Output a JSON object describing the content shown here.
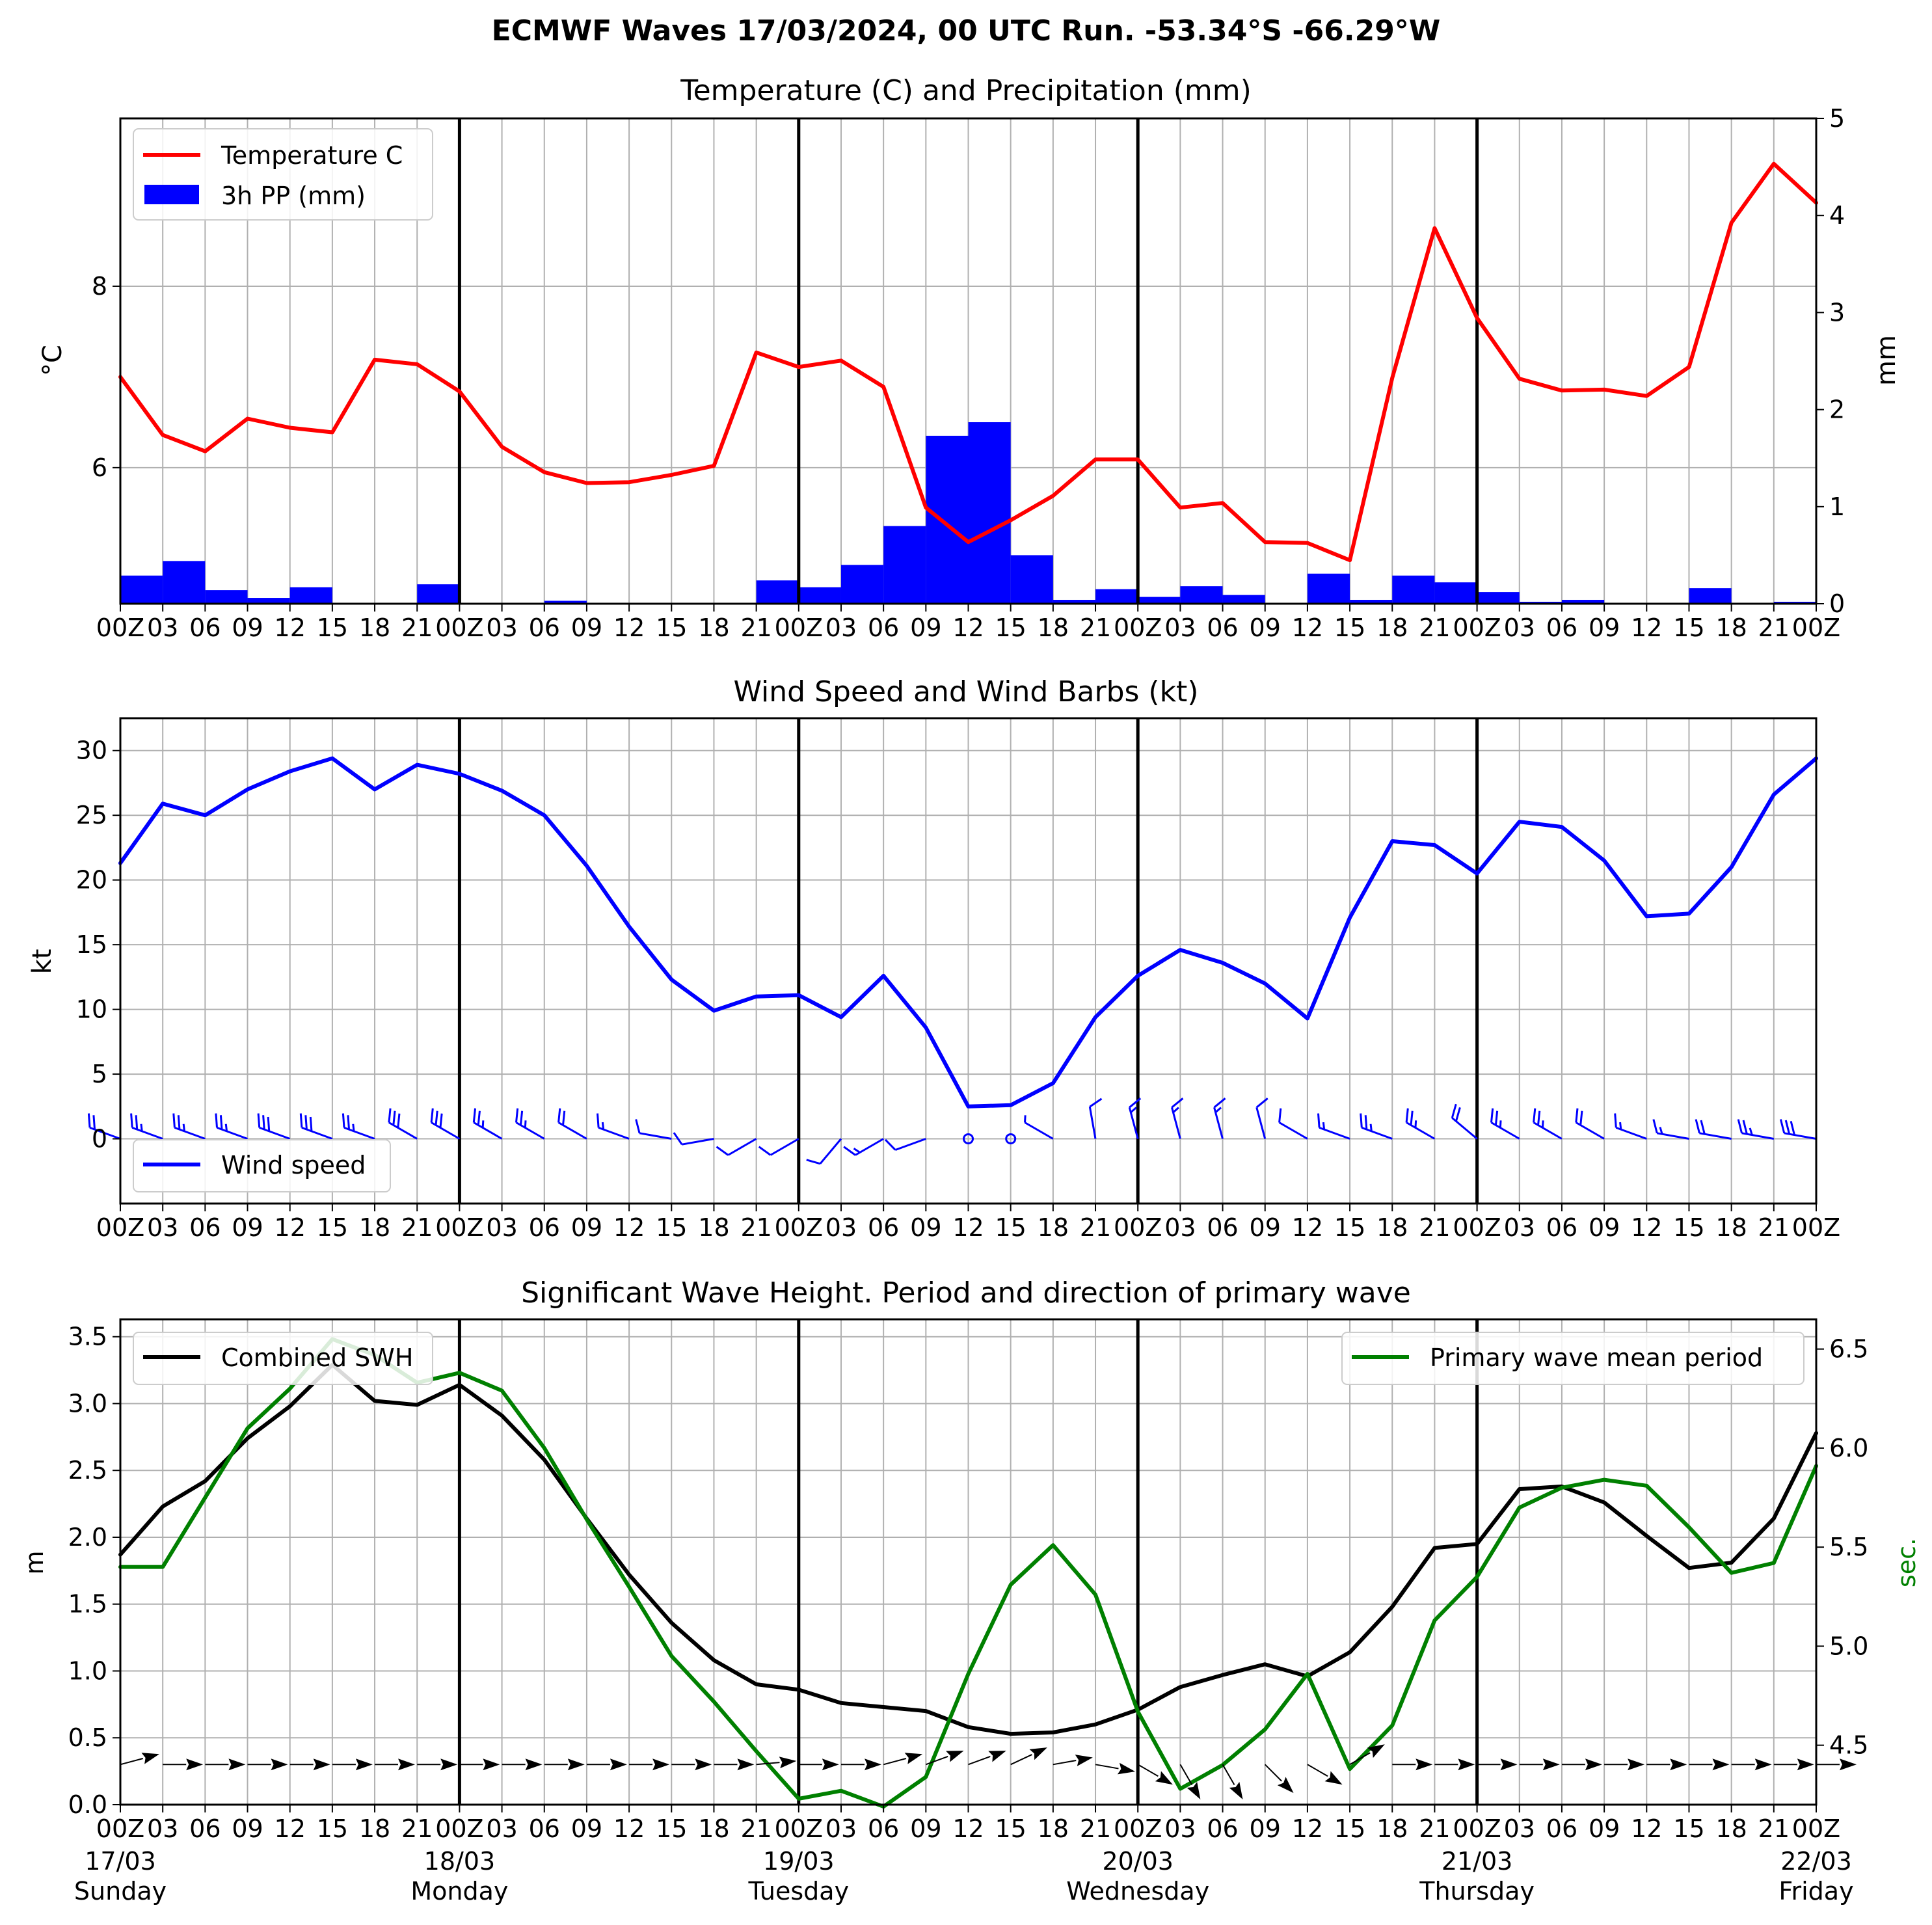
{
  "title": "ECMWF Waves 17/03/2024, 00 UTC Run. -53.34°S -66.29°W",
  "colors": {
    "temperature": "#ff0000",
    "precipitation": "#0000ff",
    "wind": "#0000ff",
    "swh": "#000000",
    "period": "#008000",
    "grid": "#b0b0b0",
    "day_line": "#000000"
  },
  "time_axis": {
    "hour_labels": [
      "00Z",
      "03",
      "06",
      "09",
      "12",
      "15",
      "18",
      "21",
      "00Z",
      "03",
      "06",
      "09",
      "12",
      "15",
      "18",
      "21",
      "00Z",
      "03",
      "06",
      "09",
      "12",
      "15",
      "18",
      "21",
      "00Z",
      "03",
      "06",
      "09",
      "12",
      "15",
      "18",
      "21",
      "00Z",
      "03",
      "06",
      "09",
      "12",
      "15",
      "18",
      "21",
      "00Z"
    ],
    "day_dates": [
      "17/03",
      "18/03",
      "19/03",
      "20/03",
      "21/03",
      "22/03"
    ],
    "day_names": [
      "Sunday",
      "Monday",
      "Tuesday",
      "Wednesday",
      "Thursday",
      "Friday"
    ]
  },
  "chart_data": [
    {
      "type": "line",
      "title": "Temperature (C) and Precipitation (mm)",
      "ylabel": "$^\\circ$C",
      "ylabel_display": "°C",
      "y2label": "mm",
      "ylim": [
        4.5,
        9.85
      ],
      "y2lim": [
        0,
        5
      ],
      "yticks": [
        6,
        8
      ],
      "y2ticks": [
        0,
        1,
        2,
        3,
        4,
        5
      ],
      "legend_position": "top-left",
      "grid": true,
      "series": [
        {
          "name": "Temperature C",
          "type": "line",
          "axis": "left",
          "values": [
            7.0,
            6.36,
            6.18,
            6.54,
            6.44,
            6.39,
            7.19,
            7.14,
            6.84,
            6.23,
            5.95,
            5.83,
            5.84,
            5.92,
            6.02,
            7.27,
            7.11,
            7.18,
            6.89,
            5.56,
            5.18,
            5.42,
            5.69,
            6.09,
            6.09,
            5.56,
            5.61,
            5.18,
            5.17,
            4.98,
            6.99,
            8.64,
            7.65,
            6.98,
            6.85,
            6.86,
            6.79,
            7.11,
            8.7,
            9.35,
            8.92
          ]
        },
        {
          "name": "3h PP (mm)",
          "type": "bar",
          "axis": "right",
          "values": [
            0.29,
            0.44,
            0.14,
            0.06,
            0.17,
            0,
            0,
            0.2,
            0,
            0,
            0.03,
            0,
            0,
            0,
            0,
            0.24,
            0.17,
            0.4,
            0.8,
            1.73,
            1.87,
            0.5,
            0.04,
            0.15,
            0.07,
            0.18,
            0.09,
            0,
            0.31,
            0.04,
            0.29,
            0.22,
            0.12,
            0.02,
            0.04,
            0,
            0,
            0.16,
            0,
            0.02
          ]
        }
      ]
    },
    {
      "type": "line",
      "title": "Wind Speed and Wind Barbs (kt)",
      "ylabel": "kt",
      "ylim": [
        -5,
        32.5
      ],
      "yticks": [
        0,
        5,
        10,
        15,
        20,
        25,
        30
      ],
      "legend_position": "bottom-left",
      "grid": true,
      "series": [
        {
          "name": "Wind speed",
          "values": [
            21.3,
            25.9,
            25.0,
            27.0,
            28.4,
            29.4,
            27.0,
            28.9,
            28.2,
            26.9,
            25.0,
            21.1,
            16.4,
            12.3,
            9.9,
            11.0,
            11.1,
            9.4,
            12.6,
            8.6,
            2.5,
            2.6,
            4.3,
            9.4,
            12.6,
            14.6,
            13.6,
            12.0,
            9.3,
            17.1,
            23.0,
            22.7,
            20.5,
            24.5,
            24.1,
            21.5,
            17.2,
            17.4,
            21.0,
            26.6,
            29.4
          ]
        },
        {
          "name": "Wind barb direction (deg)",
          "type": "barbs",
          "values": [
            290,
            290,
            290,
            290,
            290,
            290,
            290,
            300,
            300,
            300,
            300,
            300,
            290,
            280,
            260,
            240,
            240,
            220,
            240,
            250,
            30,
            330,
            300,
            350,
            345,
            345,
            345,
            345,
            300,
            290,
            290,
            300,
            310,
            300,
            300,
            300,
            290,
            280,
            280,
            280,
            280
          ]
        }
      ]
    },
    {
      "type": "line",
      "title": "Significant Wave Height. Period and direction of primary wave",
      "ylabel": "m",
      "y2label": "sec.",
      "ylim": [
        0,
        3.63
      ],
      "y2lim": [
        4.2,
        6.65
      ],
      "yticks": [
        0.0,
        0.5,
        1.0,
        1.5,
        2.0,
        2.5,
        3.0,
        3.5
      ],
      "y2ticks": [
        4.5,
        5.0,
        5.5,
        6.0,
        6.5
      ],
      "grid": true,
      "series": [
        {
          "name": "Combined SWH",
          "axis": "left",
          "legend_position": "top-left",
          "values": [
            1.87,
            2.23,
            2.42,
            2.74,
            2.98,
            3.29,
            3.02,
            2.99,
            3.14,
            2.91,
            2.58,
            2.14,
            1.72,
            1.36,
            1.08,
            0.9,
            0.86,
            0.76,
            0.73,
            0.7,
            0.58,
            0.53,
            0.54,
            0.6,
            0.71,
            0.88,
            0.97,
            1.05,
            0.96,
            1.14,
            1.48,
            1.92,
            1.95,
            2.36,
            2.38,
            2.26,
            2.01,
            1.77,
            1.81,
            2.14,
            2.78
          ]
        },
        {
          "name": "Primary wave mean period",
          "axis": "right",
          "legend_position": "top-right",
          "values": [
            5.4,
            5.4,
            5.75,
            6.1,
            6.3,
            6.55,
            6.47,
            6.33,
            6.38,
            6.29,
            6.0,
            5.64,
            5.3,
            4.95,
            4.72,
            4.47,
            4.23,
            4.27,
            4.19,
            4.34,
            4.86,
            5.31,
            5.51,
            5.26,
            4.67,
            4.28,
            4.4,
            4.58,
            4.86,
            4.38,
            4.6,
            5.13,
            5.35,
            5.7,
            5.8,
            5.84,
            5.81,
            5.6,
            5.37,
            5.42,
            5.91
          ]
        },
        {
          "name": "Primary wave direction (deg)",
          "type": "arrows",
          "values": [
            255,
            270,
            270,
            270,
            270,
            270,
            270,
            270,
            270,
            270,
            270,
            270,
            270,
            270,
            270,
            265,
            270,
            270,
            255,
            250,
            250,
            245,
            260,
            280,
            300,
            330,
            330,
            315,
            300,
            240,
            270,
            270,
            270,
            270,
            270,
            270,
            270,
            270,
            270,
            270,
            270
          ]
        }
      ]
    }
  ]
}
